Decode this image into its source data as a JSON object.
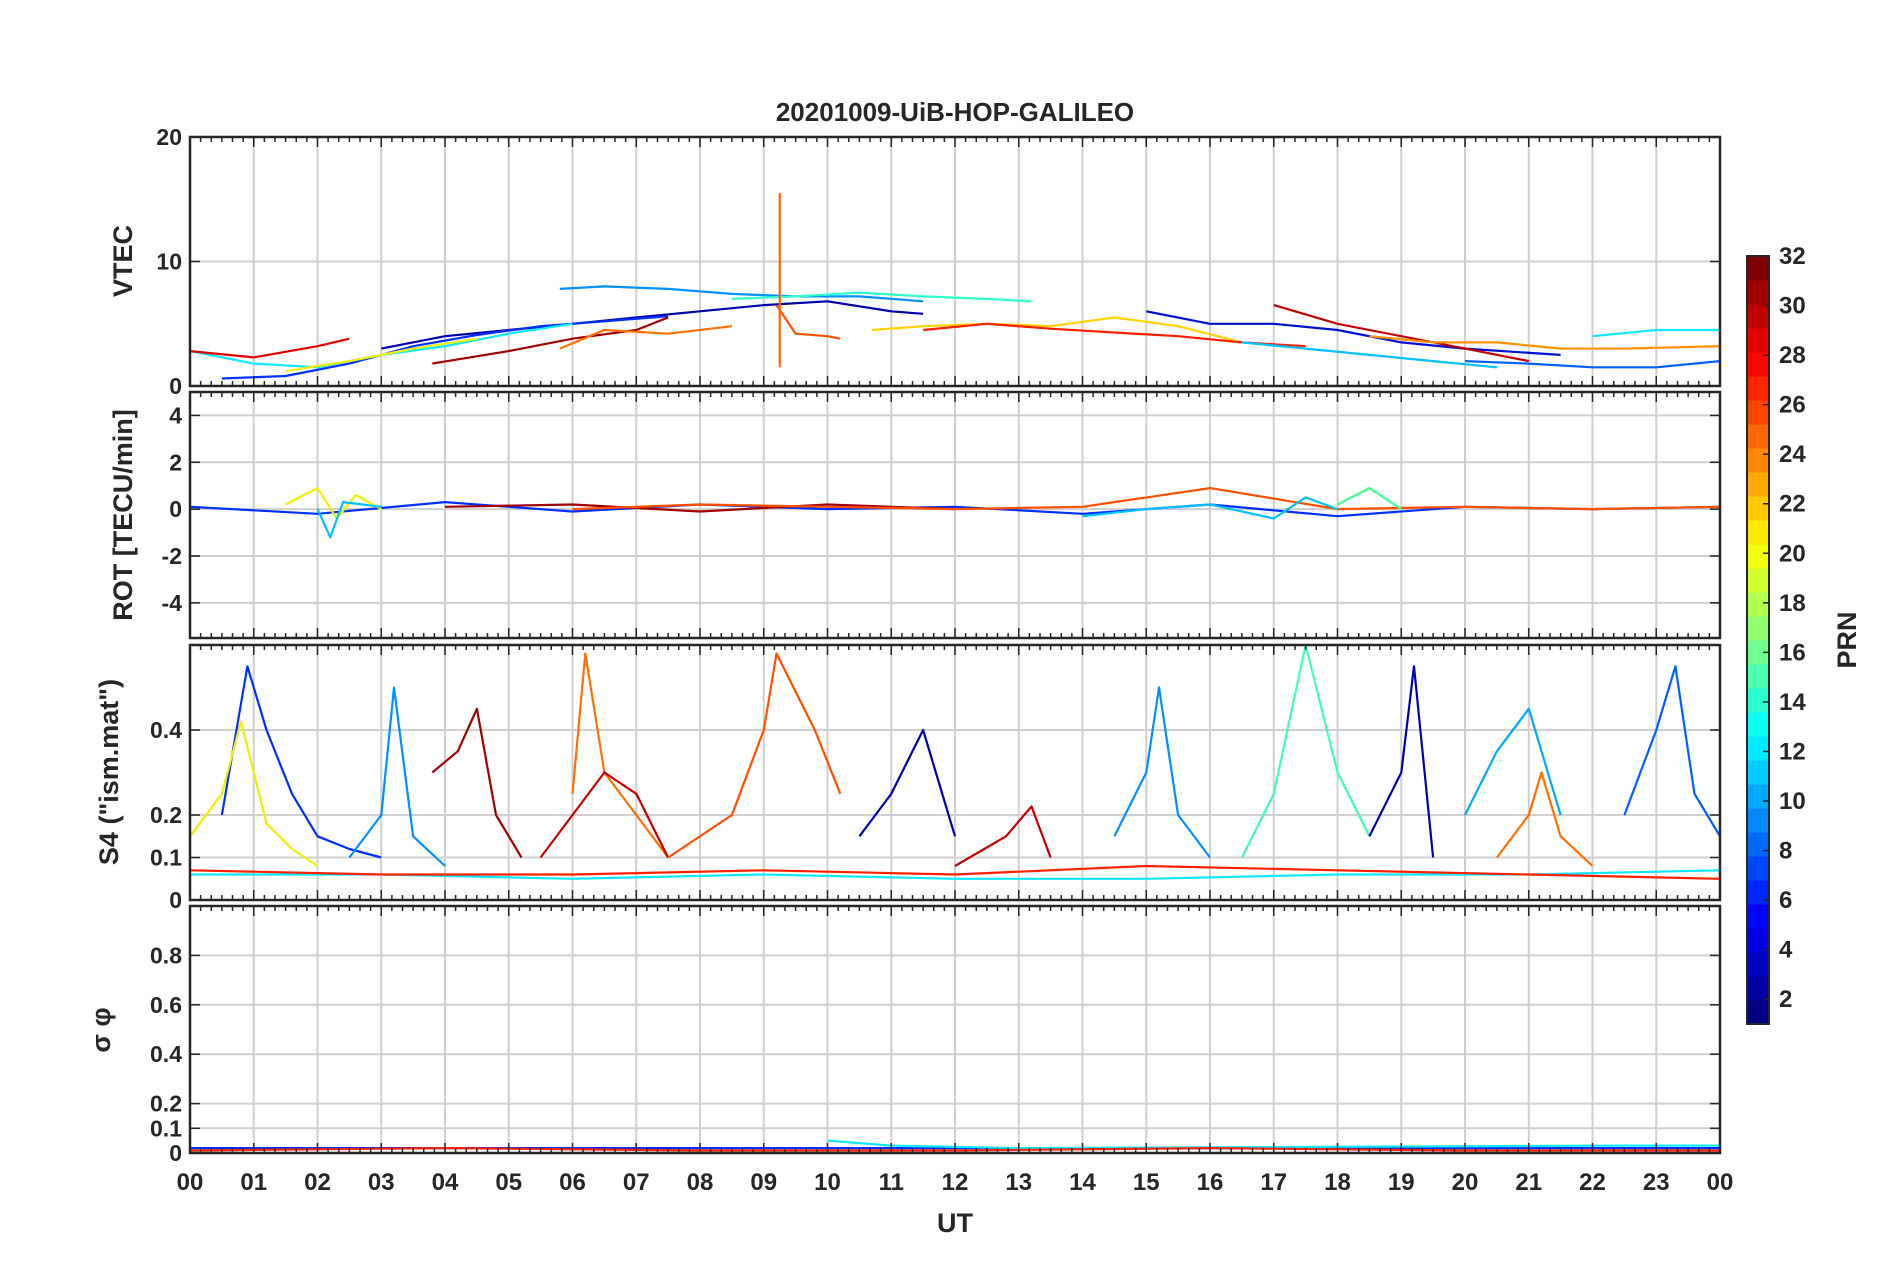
{
  "title": "20201009-UiB-HOP-GALILEO",
  "x_axis": {
    "label": "UT",
    "range": [
      0,
      24
    ],
    "tick_labels": [
      "00",
      "01",
      "02",
      "03",
      "04",
      "05",
      "06",
      "07",
      "08",
      "09",
      "10",
      "11",
      "12",
      "13",
      "14",
      "15",
      "16",
      "17",
      "18",
      "19",
      "20",
      "21",
      "22",
      "23",
      "00"
    ]
  },
  "colorbar": {
    "label": "PRN",
    "range": [
      1,
      32
    ],
    "levels": 32,
    "colormap": "jet",
    "tick_values": [
      2,
      4,
      6,
      8,
      10,
      12,
      14,
      16,
      18,
      20,
      22,
      24,
      26,
      28,
      30,
      32
    ],
    "tick_labels": [
      "2",
      "4",
      "6",
      "8",
      "10",
      "12",
      "14",
      "16",
      "18",
      "20",
      "22",
      "24",
      "26",
      "28",
      "30",
      "32"
    ]
  },
  "chart_data": [
    {
      "type": "line",
      "panel": "vtec",
      "ylabel": "VTEC",
      "ylim": [
        0,
        20
      ],
      "grid": true,
      "y_ticks": [
        0,
        10,
        20
      ],
      "y_tick_labels": [
        "0",
        "10",
        "20"
      ],
      "series": [
        {
          "prn": 2,
          "color": "#0000a8",
          "x": [
            3.0,
            4.0,
            5.0,
            6.0,
            7.0,
            8.0,
            9.0,
            10.0,
            11.0,
            11.5
          ],
          "values": [
            3.0,
            4.0,
            4.5,
            5.0,
            5.5,
            6.0,
            6.5,
            6.8,
            6.0,
            5.8
          ]
        },
        {
          "prn": 4,
          "color": "#0030ff",
          "x": [
            0.5,
            1.5,
            2.5,
            3.5,
            4.5,
            5.5,
            6.5,
            7.5
          ],
          "values": [
            0.6,
            0.8,
            1.8,
            3.2,
            4.1,
            4.8,
            5.2,
            5.6
          ]
        },
        {
          "prn": 9,
          "color": "#0090ff",
          "x": [
            5.8,
            6.5,
            7.5,
            8.5,
            9.5,
            10.5,
            11.5
          ],
          "values": [
            7.8,
            8.0,
            7.8,
            7.4,
            7.2,
            7.2,
            6.8
          ]
        },
        {
          "prn": 13,
          "color": "#30ffd0",
          "x": [
            8.5,
            9.5,
            10.5,
            11.5,
            12.5,
            13.2
          ],
          "values": [
            7.0,
            7.2,
            7.5,
            7.2,
            7.0,
            6.8
          ]
        },
        {
          "prn": 12,
          "color": "#10e8ff",
          "x": [
            0.0,
            1.0,
            2.0,
            3.0,
            4.0,
            5.0,
            6.0
          ],
          "values": [
            2.8,
            1.8,
            1.5,
            2.5,
            3.2,
            4.2,
            5.0
          ]
        },
        {
          "prn": 20,
          "color": "#f0f000",
          "x": [
            1.5,
            2.5,
            3.5,
            4.5
          ],
          "values": [
            1.2,
            2.0,
            3.0,
            3.8
          ]
        },
        {
          "prn": 29,
          "color": "#e00000",
          "x": [
            0.0,
            1.0,
            2.0,
            2.5
          ],
          "values": [
            2.8,
            2.3,
            3.2,
            3.8
          ]
        },
        {
          "prn": 31,
          "color": "#a00000",
          "x": [
            3.8,
            5.0,
            6.0,
            7.0,
            7.5
          ],
          "values": [
            1.8,
            2.8,
            3.8,
            4.5,
            5.5
          ]
        },
        {
          "prn": 24,
          "color": "#ff7000",
          "x": [
            5.8,
            6.5,
            7.5,
            8.5
          ],
          "values": [
            3.0,
            4.5,
            4.2,
            4.8
          ]
        },
        {
          "prn": 26,
          "color": "#ff5000",
          "x": [
            9.2,
            9.5,
            10.0,
            10.2
          ],
          "values": [
            6.5,
            4.2,
            4.0,
            3.8
          ]
        },
        {
          "prn": 25,
          "color": "#ff6400",
          "x": [
            9.25,
            9.25
          ],
          "values": [
            1.5,
            15.5
          ]
        },
        {
          "prn": 21,
          "color": "#ffd400",
          "x": [
            10.7,
            11.5,
            12.5,
            13.5,
            14.5,
            15.5,
            16.5
          ],
          "values": [
            4.5,
            4.8,
            5.0,
            4.8,
            5.5,
            4.8,
            3.5
          ]
        },
        {
          "prn": 28,
          "color": "#ff2000",
          "x": [
            11.5,
            12.5,
            13.5,
            14.5,
            15.5,
            16.5,
            17.5
          ],
          "values": [
            4.5,
            5.0,
            4.6,
            4.3,
            4.0,
            3.5,
            3.2
          ]
        },
        {
          "prn": 3,
          "color": "#0010d0",
          "x": [
            15.0,
            16.0,
            17.0,
            18.0,
            19.0,
            20.0,
            21.5
          ],
          "values": [
            6.0,
            5.0,
            5.0,
            4.5,
            3.5,
            3.0,
            2.5
          ]
        },
        {
          "prn": 30,
          "color": "#c00000",
          "x": [
            17.0,
            18.0,
            19.0,
            20.0,
            21.0
          ],
          "values": [
            6.5,
            5.0,
            4.0,
            3.0,
            2.0
          ]
        },
        {
          "prn": 11,
          "color": "#00c0ff",
          "x": [
            16.5,
            17.5,
            18.5,
            19.5,
            20.5
          ],
          "values": [
            3.5,
            3.0,
            2.5,
            2.0,
            1.5
          ]
        },
        {
          "prn": 6,
          "color": "#0060ff",
          "x": [
            20.0,
            21.0,
            22.0,
            23.0,
            24.0
          ],
          "values": [
            2.0,
            1.8,
            1.5,
            1.5,
            2.0
          ]
        },
        {
          "prn": 12,
          "color": "#10e8ff",
          "x": [
            22.0,
            23.0,
            24.0
          ],
          "values": [
            4.0,
            4.5,
            4.5
          ]
        },
        {
          "prn": 23,
          "color": "#ff9000",
          "x": [
            18.5,
            19.5,
            20.5,
            21.5,
            22.5,
            24.0
          ],
          "values": [
            4.0,
            3.5,
            3.5,
            3.0,
            3.0,
            3.2
          ]
        }
      ]
    },
    {
      "type": "line",
      "panel": "rot",
      "ylabel": "ROT [TECU/min]",
      "ylim": [
        -5.5,
        5.0
      ],
      "grid": true,
      "y_ticks": [
        -4,
        -2,
        0,
        2,
        4
      ],
      "y_tick_labels": [
        "-4",
        "-2",
        "0",
        "2",
        "4"
      ],
      "series": [
        {
          "prn": 4,
          "color": "#0030ff",
          "x": [
            0,
            2,
            4,
            6,
            8,
            10,
            12,
            14,
            16,
            18,
            20,
            22,
            24
          ],
          "values": [
            0.1,
            -0.2,
            0.3,
            -0.1,
            0.2,
            0.0,
            0.1,
            -0.2,
            0.2,
            -0.3,
            0.1,
            0.0,
            0.1
          ]
        },
        {
          "prn": 20,
          "color": "#f0f000",
          "x": [
            1.5,
            2.0,
            2.3,
            2.6,
            3.0
          ],
          "values": [
            0.2,
            0.9,
            -0.4,
            0.6,
            0.0
          ]
        },
        {
          "prn": 11,
          "color": "#00c0ff",
          "x": [
            2.0,
            2.2,
            2.4,
            3.0
          ],
          "values": [
            0.0,
            -1.2,
            0.3,
            0.1
          ]
        },
        {
          "prn": 31,
          "color": "#a00000",
          "x": [
            4,
            6,
            8,
            10,
            12
          ],
          "values": [
            0.1,
            0.2,
            -0.1,
            0.2,
            0.0
          ]
        },
        {
          "prn": 26,
          "color": "#ff5000",
          "x": [
            6,
            8,
            10,
            12,
            14,
            16,
            18,
            20,
            22,
            24
          ],
          "values": [
            0.0,
            0.2,
            0.1,
            0.0,
            0.1,
            0.9,
            0.0,
            0.1,
            0.0,
            0.1
          ]
        },
        {
          "prn": 11,
          "color": "#00c0ff",
          "x": [
            14.0,
            15.0,
            16.0,
            17.0,
            17.5,
            18.0
          ],
          "values": [
            -0.3,
            0.0,
            0.2,
            -0.4,
            0.5,
            0.0
          ]
        },
        {
          "prn": 16,
          "color": "#40ff90",
          "x": [
            18.0,
            18.5,
            19.0
          ],
          "values": [
            0.2,
            0.9,
            0.0
          ]
        }
      ]
    },
    {
      "type": "line",
      "panel": "s4",
      "ylabel": "S4 (\"ism.mat\")",
      "ylim": [
        0,
        0.6
      ],
      "grid": true,
      "y_ticks": [
        0,
        0.1,
        0.2,
        0.4
      ],
      "y_tick_labels": [
        "0",
        "0.1",
        "0.2",
        "0.4"
      ],
      "series": [
        {
          "prn": 4,
          "color": "#0030ff",
          "x": [
            0.5,
            0.9,
            1.2,
            1.6,
            2.0,
            2.5,
            3.0
          ],
          "values": [
            0.2,
            0.55,
            0.4,
            0.25,
            0.15,
            0.12,
            0.1
          ]
        },
        {
          "prn": 20,
          "color": "#f0f000",
          "x": [
            0.0,
            0.5,
            0.8,
            1.2,
            1.6,
            2.0
          ],
          "values": [
            0.15,
            0.25,
            0.42,
            0.18,
            0.12,
            0.08
          ]
        },
        {
          "prn": 9,
          "color": "#0090ff",
          "x": [
            2.5,
            3.0,
            3.2,
            3.5,
            4.0
          ],
          "values": [
            0.1,
            0.2,
            0.5,
            0.15,
            0.08
          ]
        },
        {
          "prn": 31,
          "color": "#a00000",
          "x": [
            3.8,
            4.2,
            4.5,
            4.8,
            5.2
          ],
          "values": [
            0.3,
            0.35,
            0.45,
            0.2,
            0.1
          ]
        },
        {
          "prn": 24,
          "color": "#ff7000",
          "x": [
            6.0,
            6.2,
            6.5,
            7.0,
            7.5
          ],
          "values": [
            0.25,
            0.58,
            0.3,
            0.2,
            0.1
          ]
        },
        {
          "prn": 30,
          "color": "#c00000",
          "x": [
            5.5,
            6.0,
            6.5,
            7.0,
            7.5
          ],
          "values": [
            0.1,
            0.2,
            0.3,
            0.25,
            0.1
          ]
        },
        {
          "prn": 26,
          "color": "#ff5000",
          "x": [
            7.5,
            8.5,
            9.0,
            9.2,
            9.8,
            10.2
          ],
          "values": [
            0.1,
            0.2,
            0.4,
            0.58,
            0.4,
            0.25
          ]
        },
        {
          "prn": 2,
          "color": "#0000a8",
          "x": [
            10.5,
            11.0,
            11.5,
            12.0
          ],
          "values": [
            0.15,
            0.25,
            0.4,
            0.15
          ]
        },
        {
          "prn": 30,
          "color": "#c00000",
          "x": [
            12.0,
            12.8,
            13.2,
            13.5
          ],
          "values": [
            0.08,
            0.15,
            0.22,
            0.1
          ]
        },
        {
          "prn": 9,
          "color": "#0090ff",
          "x": [
            14.5,
            15.0,
            15.2,
            15.5,
            16.0
          ],
          "values": [
            0.15,
            0.3,
            0.5,
            0.2,
            0.1
          ]
        },
        {
          "prn": 15,
          "color": "#40ffb0",
          "x": [
            16.5,
            17.0,
            17.5,
            18.0,
            18.5
          ],
          "values": [
            0.1,
            0.25,
            0.6,
            0.3,
            0.15
          ]
        },
        {
          "prn": 2,
          "color": "#0000a8",
          "x": [
            18.5,
            19.0,
            19.2,
            19.5
          ],
          "values": [
            0.15,
            0.3,
            0.55,
            0.1
          ]
        },
        {
          "prn": 10,
          "color": "#00a8ff",
          "x": [
            20.0,
            20.5,
            21.0,
            21.5
          ],
          "values": [
            0.2,
            0.35,
            0.45,
            0.2
          ]
        },
        {
          "prn": 24,
          "color": "#ff7000",
          "x": [
            20.5,
            21.0,
            21.2,
            21.5,
            22.0
          ],
          "values": [
            0.1,
            0.2,
            0.3,
            0.15,
            0.08
          ]
        },
        {
          "prn": 6,
          "color": "#0060ff",
          "x": [
            22.5,
            23.0,
            23.3,
            23.6,
            24.0
          ],
          "values": [
            0.2,
            0.4,
            0.55,
            0.25,
            0.15
          ]
        },
        {
          "prn": 12,
          "color": "#10e8ff",
          "x": [
            0,
            3,
            6,
            9,
            12,
            15,
            18,
            21,
            24
          ],
          "values": [
            0.06,
            0.06,
            0.05,
            0.06,
            0.05,
            0.05,
            0.06,
            0.06,
            0.07
          ]
        },
        {
          "prn": 28,
          "color": "#ff2000",
          "x": [
            0,
            3,
            6,
            9,
            12,
            15,
            18,
            21,
            24
          ],
          "values": [
            0.07,
            0.06,
            0.06,
            0.07,
            0.06,
            0.08,
            0.07,
            0.06,
            0.05
          ]
        }
      ]
    },
    {
      "type": "line",
      "panel": "sigma_phi",
      "ylabel": "σ φ",
      "ylim": [
        0,
        1.0
      ],
      "grid": true,
      "y_ticks": [
        0,
        0.1,
        0.2,
        0.4,
        0.6,
        0.8
      ],
      "y_tick_labels": [
        "0",
        "0.1",
        "0.2",
        "0.4",
        "0.6",
        "0.8"
      ],
      "series": [
        {
          "prn": 4,
          "color": "#0030ff",
          "x": [
            0,
            3,
            6,
            9,
            12,
            15,
            18,
            21,
            24
          ],
          "values": [
            0.02,
            0.02,
            0.02,
            0.02,
            0.02,
            0.02,
            0.02,
            0.02,
            0.02
          ]
        },
        {
          "prn": 12,
          "color": "#10e8ff",
          "x": [
            10.0,
            10.5,
            11.0,
            13.0,
            22.5,
            24.0
          ],
          "values": [
            0.05,
            0.04,
            0.03,
            0.02,
            0.03,
            0.03
          ]
        },
        {
          "prn": 28,
          "color": "#ff2000",
          "x": [
            0,
            4,
            8,
            12,
            16,
            20,
            24
          ],
          "values": [
            0.01,
            0.02,
            0.01,
            0.01,
            0.02,
            0.01,
            0.01
          ]
        }
      ]
    }
  ]
}
